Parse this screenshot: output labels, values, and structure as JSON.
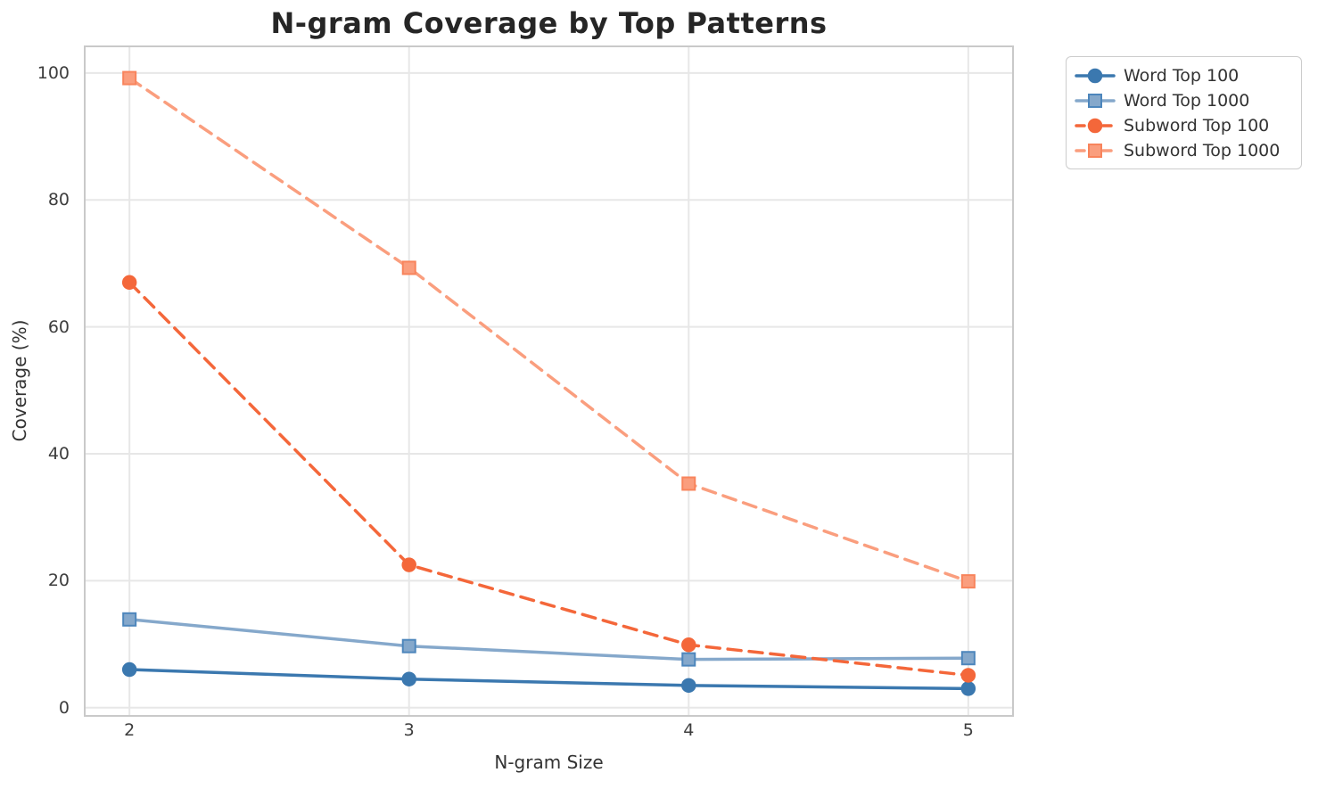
{
  "chart_data": {
    "type": "line",
    "title": "N-gram Coverage by Top Patterns",
    "xlabel": "N-gram Size",
    "ylabel": "Coverage (%)",
    "x": [
      2,
      3,
      4,
      5
    ],
    "x_tick_labels": [
      "2",
      "3",
      "4",
      "5"
    ],
    "y_ticks": [
      0,
      20,
      40,
      60,
      80,
      100
    ],
    "y_tick_labels": [
      "0",
      "20",
      "40",
      "60",
      "80",
      "100"
    ],
    "xlim": [
      1.84,
      5.16
    ],
    "ylim": [
      -1.3,
      104.2
    ],
    "grid": true,
    "legend_position": "upper-right-outside",
    "series": [
      {
        "name": "Word Top 100",
        "values": [
          6.0,
          4.5,
          3.5,
          3.0
        ],
        "color": "#3B78AF",
        "marker": "circle",
        "marker_edge": "#3B78AF",
        "line_style": "solid"
      },
      {
        "name": "Word Top 1000",
        "values": [
          13.9,
          9.7,
          7.6,
          7.8
        ],
        "color": "#85A8CB",
        "marker": "square",
        "marker_edge": "#4D86BC",
        "line_style": "solid"
      },
      {
        "name": "Subword Top 100",
        "values": [
          67.0,
          22.5,
          9.9,
          5.1
        ],
        "color": "#F4673A",
        "marker": "circle",
        "marker_edge": "#F4673A",
        "line_style": "dashed"
      },
      {
        "name": "Subword Top 1000",
        "values": [
          99.2,
          69.3,
          35.3,
          19.9
        ],
        "color": "#FA9E7E",
        "marker": "square",
        "marker_edge": "#F8845C",
        "line_style": "dashed"
      }
    ],
    "colors": {
      "background": "#ffffff",
      "grid": "#e7e7e7",
      "spine": "#c9c9c9",
      "title": "#262626",
      "tick_label": "#3d3d3d",
      "legend_border": "#cccccc"
    }
  }
}
